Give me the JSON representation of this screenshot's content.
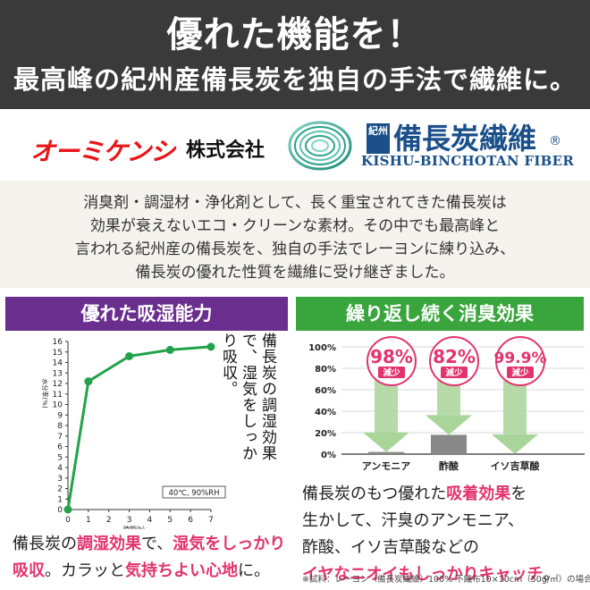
{
  "header": {
    "title": "優れた機能を！",
    "subtitle": "最高峰の紀州産備長炭を独自の手法で繊維に。"
  },
  "brand": {
    "maker": "オーミケンシ",
    "company_suffix": "株式会社",
    "kishu_label": "紀州",
    "product_jp": "備長炭繊維",
    "registered": "®",
    "product_en": "KISHU-BINCHOTAN FIBER"
  },
  "intro": {
    "lines": [
      "消臭剤・調湿材・浄化剤として、長く重宝されてきた備長炭は",
      "効果が衰えないエコ・クリーンな素材。その中でも最高峰と",
      "言われる紀州産の備長炭を、独自の手法でレーヨンに練り込み、",
      "備長炭の優れた性質を繊維に受け継ぎました。"
    ]
  },
  "left_panel": {
    "heading": "優れた吸湿能力",
    "vertical_text": "備長炭の調湿効果で、湿気をしっかり吸収。",
    "caption_parts": [
      {
        "text": "備長炭の",
        "style": "normal"
      },
      {
        "text": "調湿効果",
        "style": "pink"
      },
      {
        "text": "で、",
        "style": "normal"
      },
      {
        "text": "湿気をしっかり",
        "style": "pink"
      },
      {
        "text": "吸収",
        "style": "pink"
      },
      {
        "text": "。カラッと",
        "style": "normal"
      },
      {
        "text": "気持ちよい心地",
        "style": "pink"
      },
      {
        "text": "に。",
        "style": "normal"
      }
    ]
  },
  "right_panel": {
    "heading": "繰り返し続く消臭効果",
    "caption_line1_parts": [
      {
        "text": "備長炭のもつ優れた",
        "style": "normal"
      },
      {
        "text": "吸着効果",
        "style": "pink"
      },
      {
        "text": "を",
        "style": "normal"
      }
    ],
    "caption_line2": "生かして、汗臭のアンモニア、",
    "caption_line3": "酢酸、イソ吉草酸などの",
    "caption_line4": "イヤなニオイもしっかりキャッチ",
    "caption_line4_end": "。",
    "note": "※試料：レーヨン（備長炭繊維）100% 不織布10×10cm（50g/㎡）の場合"
  },
  "chart_data": [
    {
      "type": "line",
      "x": [
        0,
        1,
        3,
        5,
        7
      ],
      "y": [
        0.0,
        12.2,
        14.6,
        15.2,
        15.5
      ],
      "xticks": [
        0,
        1,
        2,
        3,
        4,
        5,
        6,
        7
      ],
      "yticks": [
        0,
        1,
        2,
        3,
        4,
        5,
        6,
        7,
        8,
        9,
        10,
        11,
        12,
        13,
        14,
        15,
        16
      ],
      "xlabel": "時間(h)",
      "ylabel": "水分率(%)",
      "xlim": [
        0,
        7
      ],
      "ylim": [
        0,
        16
      ],
      "legend_box": "40℃, 90%RH",
      "color": "#22a24a"
    },
    {
      "type": "bar",
      "categories": [
        "アンモニア",
        "酢酸",
        "イソ吉草酸"
      ],
      "values": [
        98,
        82,
        99.9
      ],
      "remaining": [
        2,
        18,
        0.1
      ],
      "labels": [
        "98%",
        "82%",
        "99.9%"
      ],
      "badge": "減少",
      "yticks": [
        "0%",
        "20%",
        "40%",
        "60%",
        "80%",
        "100%"
      ],
      "ylim": [
        0,
        100
      ],
      "arrow_color": "#a9d59a",
      "remaining_color": "#888888",
      "badge_color": "#e2336f"
    }
  ]
}
